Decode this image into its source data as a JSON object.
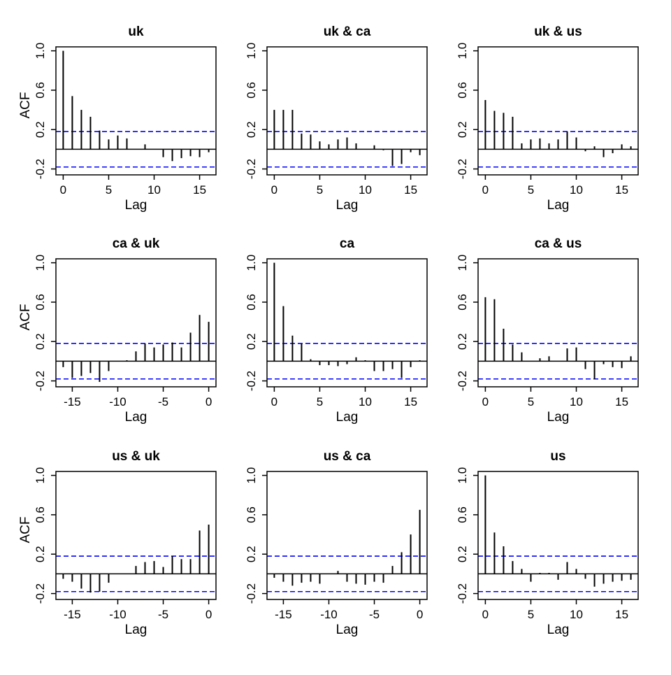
{
  "colors": {
    "bar": "#000000",
    "ci_line": "#0000ff",
    "frame": "#000000",
    "background": "#ffffff"
  },
  "chart_data": [
    {
      "type": "bar",
      "title": "uk",
      "xlabel": "Lag",
      "ylabel": "ACF",
      "x": [
        0,
        1,
        2,
        3,
        4,
        5,
        6,
        7,
        8,
        9,
        10,
        11,
        12,
        13,
        14,
        15,
        16
      ],
      "values": [
        1.0,
        0.54,
        0.4,
        0.33,
        0.19,
        0.1,
        0.14,
        0.11,
        0.0,
        0.05,
        0.0,
        -0.08,
        -0.12,
        -0.09,
        -0.07,
        -0.08,
        -0.03
      ],
      "ci": 0.18,
      "xlim": [
        -0.8,
        16.8
      ],
      "ylim": [
        -0.26,
        1.04
      ],
      "x_ticks": [
        0,
        5,
        10,
        15
      ],
      "y_ticks": [
        -0.2,
        0.2,
        0.6,
        1.0
      ],
      "y_tick_labels": [
        "-0.2",
        "0.2",
        "0.6",
        "1.0"
      ]
    },
    {
      "type": "bar",
      "title": "uk & ca",
      "xlabel": "Lag",
      "ylabel": "",
      "x": [
        0,
        1,
        2,
        3,
        4,
        5,
        6,
        7,
        8,
        9,
        10,
        11,
        12,
        13,
        14,
        15,
        16
      ],
      "values": [
        0.4,
        0.4,
        0.4,
        0.16,
        0.15,
        0.08,
        0.05,
        0.1,
        0.12,
        0.06,
        0.0,
        0.04,
        -0.01,
        -0.17,
        -0.15,
        -0.03,
        -0.06
      ],
      "ci": 0.18,
      "xlim": [
        -0.8,
        16.8
      ],
      "ylim": [
        -0.26,
        1.04
      ],
      "x_ticks": [
        0,
        5,
        10,
        15
      ],
      "y_ticks": [
        -0.2,
        0.2,
        0.6,
        1.0
      ],
      "y_tick_labels": [
        "-0.2",
        "0.2",
        "0.6",
        "1.0"
      ]
    },
    {
      "type": "bar",
      "title": "uk & us",
      "xlabel": "Lag",
      "ylabel": "",
      "x": [
        0,
        1,
        2,
        3,
        4,
        5,
        6,
        7,
        8,
        9,
        10,
        11,
        12,
        13,
        14,
        15,
        16
      ],
      "values": [
        0.5,
        0.39,
        0.37,
        0.33,
        0.06,
        0.1,
        0.11,
        0.06,
        0.1,
        0.18,
        0.12,
        -0.02,
        0.03,
        -0.08,
        -0.04,
        0.05,
        0.03
      ],
      "ci": 0.18,
      "xlim": [
        -0.8,
        16.8
      ],
      "ylim": [
        -0.26,
        1.04
      ],
      "x_ticks": [
        0,
        5,
        10,
        15
      ],
      "y_ticks": [
        -0.2,
        0.2,
        0.6,
        1.0
      ],
      "y_tick_labels": [
        "-0.2",
        "0.2",
        "0.6",
        "1.0"
      ]
    },
    {
      "type": "bar",
      "title": "ca & uk",
      "xlabel": "Lag",
      "ylabel": "ACF",
      "x": [
        -16,
        -15,
        -14,
        -13,
        -12,
        -11,
        -10,
        -9,
        -8,
        -7,
        -6,
        -5,
        -4,
        -3,
        -2,
        -1,
        0
      ],
      "values": [
        -0.06,
        -0.17,
        -0.15,
        -0.12,
        -0.21,
        -0.1,
        0.0,
        0.01,
        0.1,
        0.18,
        0.14,
        0.17,
        0.19,
        0.14,
        0.29,
        0.47,
        0.4
      ],
      "ci": 0.18,
      "xlim": [
        -16.8,
        0.8
      ],
      "ylim": [
        -0.26,
        1.04
      ],
      "x_ticks": [
        -15,
        -10,
        -5,
        0
      ],
      "y_ticks": [
        -0.2,
        0.2,
        0.6,
        1.0
      ],
      "y_tick_labels": [
        "-0.2",
        "0.2",
        "0.6",
        "1.0"
      ]
    },
    {
      "type": "bar",
      "title": "ca",
      "xlabel": "Lag",
      "ylabel": "",
      "x": [
        0,
        1,
        2,
        3,
        4,
        5,
        6,
        7,
        8,
        9,
        10,
        11,
        12,
        13,
        14,
        15,
        16
      ],
      "values": [
        1.0,
        0.56,
        0.26,
        0.18,
        0.02,
        -0.04,
        -0.04,
        -0.05,
        -0.03,
        0.04,
        0.01,
        -0.1,
        -0.1,
        -0.08,
        -0.17,
        -0.06,
        0.01
      ],
      "ci": 0.18,
      "xlim": [
        -0.8,
        16.8
      ],
      "ylim": [
        -0.26,
        1.04
      ],
      "x_ticks": [
        0,
        5,
        10,
        15
      ],
      "y_ticks": [
        -0.2,
        0.2,
        0.6,
        1.0
      ],
      "y_tick_labels": [
        "-0.2",
        "0.2",
        "0.6",
        "1.0"
      ]
    },
    {
      "type": "bar",
      "title": "ca & us",
      "xlabel": "Lag",
      "ylabel": "",
      "x": [
        0,
        1,
        2,
        3,
        4,
        5,
        6,
        7,
        8,
        9,
        10,
        11,
        12,
        13,
        14,
        15,
        16
      ],
      "values": [
        0.65,
        0.63,
        0.33,
        0.17,
        0.09,
        0.0,
        0.03,
        0.05,
        0.0,
        0.13,
        0.14,
        -0.08,
        -0.18,
        -0.03,
        -0.06,
        -0.07,
        0.05
      ],
      "ci": 0.18,
      "xlim": [
        -0.8,
        16.8
      ],
      "ylim": [
        -0.26,
        1.04
      ],
      "x_ticks": [
        0,
        5,
        10,
        15
      ],
      "y_ticks": [
        -0.2,
        0.2,
        0.6,
        1.0
      ],
      "y_tick_labels": [
        "-0.2",
        "0.2",
        "0.6",
        "1.0"
      ]
    },
    {
      "type": "bar",
      "title": "us & uk",
      "xlabel": "Lag",
      "ylabel": "ACF",
      "x": [
        -16,
        -15,
        -14,
        -13,
        -12,
        -11,
        -10,
        -9,
        -8,
        -7,
        -6,
        -5,
        -4,
        -3,
        -2,
        -1,
        0
      ],
      "values": [
        -0.05,
        -0.08,
        -0.15,
        -0.19,
        -0.18,
        -0.09,
        0.0,
        0.0,
        0.08,
        0.12,
        0.13,
        0.07,
        0.18,
        0.15,
        0.15,
        0.44,
        0.5
      ],
      "ci": 0.18,
      "xlim": [
        -16.8,
        0.8
      ],
      "ylim": [
        -0.26,
        1.04
      ],
      "x_ticks": [
        -15,
        -10,
        -5,
        0
      ],
      "y_ticks": [
        -0.2,
        0.2,
        0.6,
        1.0
      ],
      "y_tick_labels": [
        "-0.2",
        "0.2",
        "0.6",
        "1.0"
      ]
    },
    {
      "type": "bar",
      "title": "us & ca",
      "xlabel": "Lag",
      "ylabel": "",
      "x": [
        -16,
        -15,
        -14,
        -13,
        -12,
        -11,
        -10,
        -9,
        -8,
        -7,
        -6,
        -5,
        -4,
        -3,
        -2,
        -1,
        0
      ],
      "values": [
        -0.04,
        -0.08,
        -0.12,
        -0.09,
        -0.08,
        -0.1,
        0.0,
        0.03,
        -0.08,
        -0.1,
        -0.11,
        -0.08,
        -0.09,
        0.08,
        0.22,
        0.4,
        0.65
      ],
      "ci": 0.18,
      "xlim": [
        -16.8,
        0.8
      ],
      "ylim": [
        -0.26,
        1.04
      ],
      "x_ticks": [
        -15,
        -10,
        -5,
        0
      ],
      "y_ticks": [
        -0.2,
        0.2,
        0.6,
        1.0
      ],
      "y_tick_labels": [
        "-0.2",
        "0.2",
        "0.6",
        "1.0"
      ]
    },
    {
      "type": "bar",
      "title": "us",
      "xlabel": "Lag",
      "ylabel": "",
      "x": [
        0,
        1,
        2,
        3,
        4,
        5,
        6,
        7,
        8,
        9,
        10,
        11,
        12,
        13,
        14,
        15,
        16
      ],
      "values": [
        1.0,
        0.42,
        0.28,
        0.13,
        0.05,
        -0.08,
        0.01,
        0.01,
        -0.06,
        0.12,
        0.05,
        -0.05,
        -0.13,
        -0.1,
        -0.08,
        -0.07,
        -0.06
      ],
      "ci": 0.18,
      "xlim": [
        -0.8,
        16.8
      ],
      "ylim": [
        -0.26,
        1.04
      ],
      "x_ticks": [
        0,
        5,
        10,
        15
      ],
      "y_ticks": [
        -0.2,
        0.2,
        0.6,
        1.0
      ],
      "y_tick_labels": [
        "-0.2",
        "0.2",
        "0.6",
        "1.0"
      ]
    }
  ]
}
